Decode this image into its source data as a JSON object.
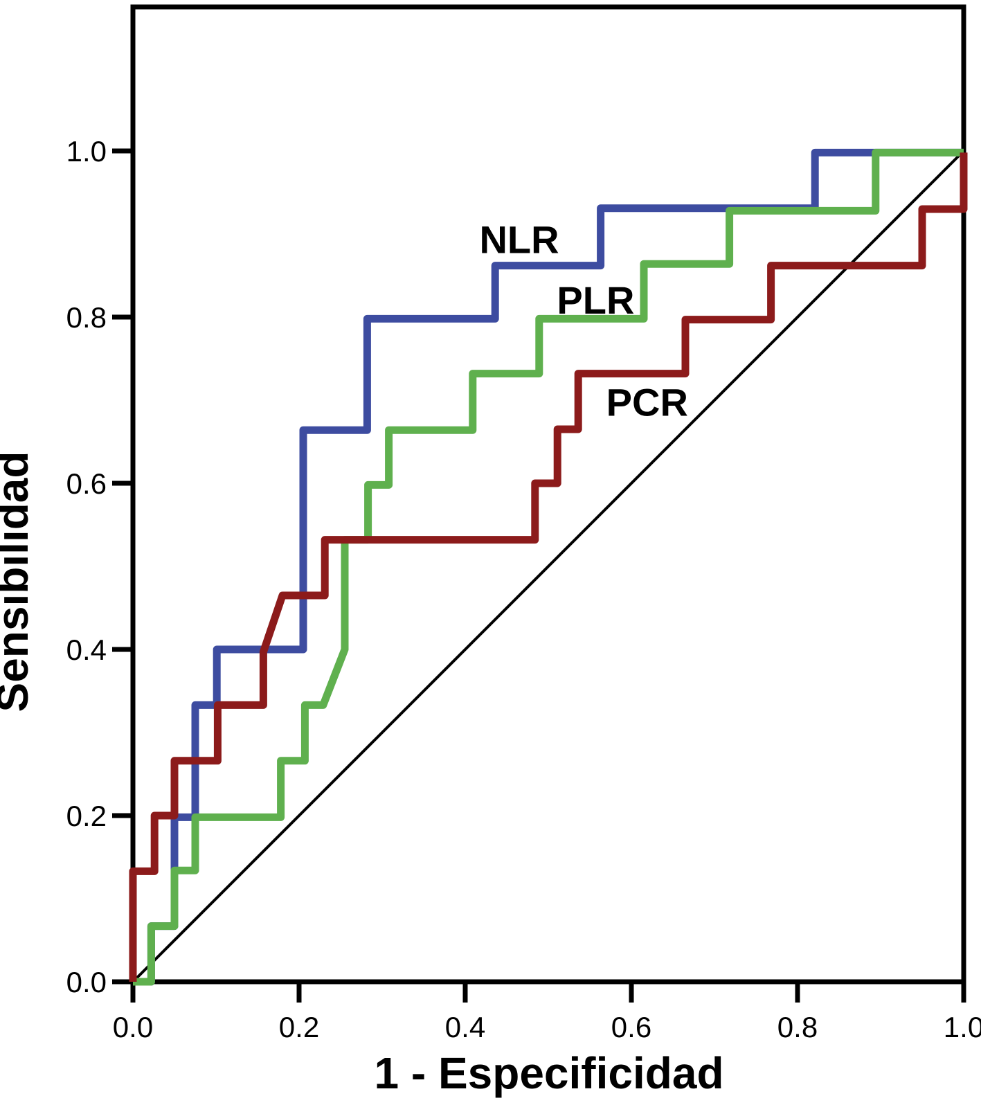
{
  "chart_data": {
    "type": "line",
    "subtype": "roc-step-curves",
    "title": "",
    "xlabel": "1 - Especificidad",
    "ylabel": "Sensibilidad",
    "xlim": [
      0.0,
      1.0
    ],
    "ylim": [
      0.0,
      1.0
    ],
    "grid": false,
    "legend_position": "inline-labels-on-curves",
    "x_ticks": [
      {
        "value": 0.0,
        "label": "0.0"
      },
      {
        "value": 0.2,
        "label": "0.2"
      },
      {
        "value": 0.4,
        "label": "0.4"
      },
      {
        "value": 0.6,
        "label": "0.6"
      },
      {
        "value": 0.8,
        "label": "0.8"
      },
      {
        "value": 1.0,
        "label": "1.0"
      }
    ],
    "y_ticks": [
      {
        "value": 0.0,
        "label": "0.0"
      },
      {
        "value": 0.2,
        "label": "0.2"
      },
      {
        "value": 0.4,
        "label": "0.4"
      },
      {
        "value": 0.6,
        "label": "0.6"
      },
      {
        "value": 0.8,
        "label": "0.8"
      },
      {
        "value": 1.0,
        "label": "1.0"
      }
    ],
    "reference_line": {
      "name": "diagonal-reference",
      "from": [
        0.0,
        0.0
      ],
      "to": [
        1.0,
        1.0
      ],
      "color": "#000000"
    },
    "series": [
      {
        "name": "NLR",
        "color": "#3d4ca0",
        "label_pos": {
          "x": 0.465,
          "y": 0.893
        },
        "points": [
          [
            0.0,
            0.0
          ],
          [
            0.022,
            0.0
          ],
          [
            0.022,
            0.067
          ],
          [
            0.05,
            0.067
          ],
          [
            0.05,
            0.198
          ],
          [
            0.075,
            0.198
          ],
          [
            0.075,
            0.333
          ],
          [
            0.101,
            0.333
          ],
          [
            0.101,
            0.4
          ],
          [
            0.205,
            0.4
          ],
          [
            0.205,
            0.664
          ],
          [
            0.282,
            0.664
          ],
          [
            0.282,
            0.798
          ],
          [
            0.436,
            0.798
          ],
          [
            0.436,
            0.862
          ],
          [
            0.563,
            0.862
          ],
          [
            0.563,
            0.931
          ],
          [
            0.821,
            0.931
          ],
          [
            0.821,
            0.998
          ],
          [
            1.0,
            0.998
          ]
        ]
      },
      {
        "name": "PLR",
        "color": "#5fb04e",
        "label_pos": {
          "x": 0.557,
          "y": 0.82
        },
        "points": [
          [
            0.0,
            0.0
          ],
          [
            0.022,
            0.0
          ],
          [
            0.022,
            0.067
          ],
          [
            0.05,
            0.067
          ],
          [
            0.05,
            0.134
          ],
          [
            0.075,
            0.134
          ],
          [
            0.075,
            0.198
          ],
          [
            0.178,
            0.198
          ],
          [
            0.178,
            0.266
          ],
          [
            0.207,
            0.266
          ],
          [
            0.207,
            0.333
          ],
          [
            0.229,
            0.333
          ],
          [
            0.255,
            0.4
          ],
          [
            0.255,
            0.532
          ],
          [
            0.283,
            0.532
          ],
          [
            0.283,
            0.598
          ],
          [
            0.308,
            0.598
          ],
          [
            0.308,
            0.664
          ],
          [
            0.409,
            0.664
          ],
          [
            0.409,
            0.732
          ],
          [
            0.489,
            0.732
          ],
          [
            0.489,
            0.798
          ],
          [
            0.615,
            0.798
          ],
          [
            0.615,
            0.864
          ],
          [
            0.718,
            0.864
          ],
          [
            0.718,
            0.928
          ],
          [
            0.894,
            0.928
          ],
          [
            0.894,
            0.998
          ],
          [
            1.0,
            0.998
          ]
        ]
      },
      {
        "name": "PCR",
        "color": "#8c1b1b",
        "label_pos": {
          "x": 0.619,
          "y": 0.697
        },
        "points": [
          [
            0.0,
            0.0
          ],
          [
            0.0,
            0.133
          ],
          [
            0.026,
            0.133
          ],
          [
            0.026,
            0.2
          ],
          [
            0.05,
            0.2
          ],
          [
            0.05,
            0.266
          ],
          [
            0.102,
            0.266
          ],
          [
            0.102,
            0.333
          ],
          [
            0.157,
            0.333
          ],
          [
            0.157,
            0.397
          ],
          [
            0.18,
            0.465
          ],
          [
            0.231,
            0.465
          ],
          [
            0.231,
            0.532
          ],
          [
            0.484,
            0.532
          ],
          [
            0.484,
            0.6
          ],
          [
            0.511,
            0.6
          ],
          [
            0.511,
            0.665
          ],
          [
            0.536,
            0.665
          ],
          [
            0.536,
            0.732
          ],
          [
            0.665,
            0.732
          ],
          [
            0.665,
            0.797
          ],
          [
            0.768,
            0.797
          ],
          [
            0.768,
            0.862
          ],
          [
            0.95,
            0.862
          ],
          [
            0.95,
            0.93
          ],
          [
            1.0,
            0.93
          ],
          [
            1.0,
            0.998
          ]
        ]
      }
    ]
  },
  "frame": {
    "background": "#ffffff",
    "box_color": "#000000",
    "text_color": "#000000"
  }
}
